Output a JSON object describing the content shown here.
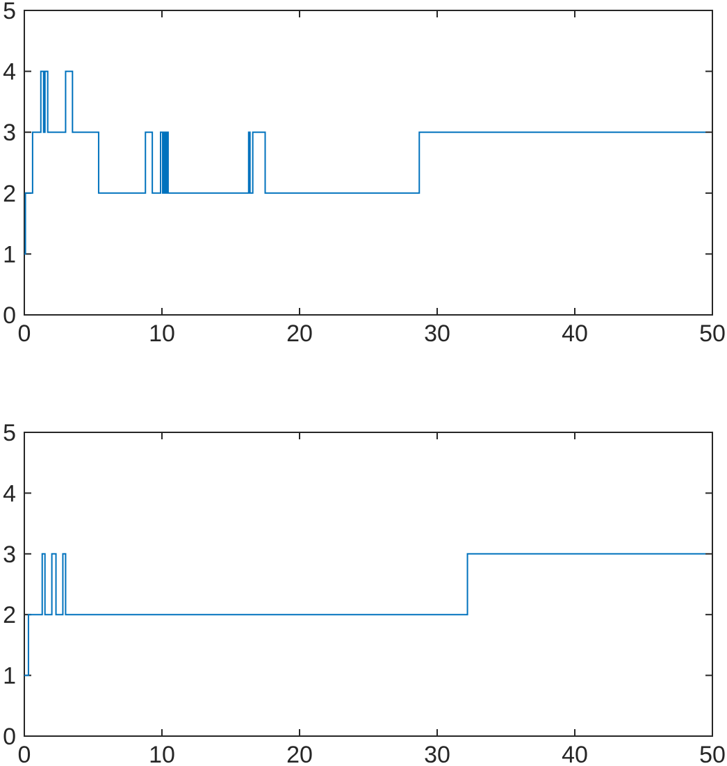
{
  "chart_data": [
    {
      "type": "line",
      "step": "post",
      "xlim": [
        0,
        50
      ],
      "ylim": [
        0,
        5
      ],
      "xticks": [
        0,
        10,
        20,
        30,
        40,
        50
      ],
      "yticks": [
        0,
        1,
        2,
        3,
        4,
        5
      ],
      "xtick_labels": [
        "0",
        "10",
        "20",
        "30",
        "40",
        "50"
      ],
      "ytick_labels": [
        "0",
        "1",
        "2",
        "3",
        "4",
        "5"
      ],
      "grid": false,
      "series": [
        {
          "color": "#0072BD",
          "x": [
            0.0,
            0.08,
            0.6,
            1.2,
            1.4,
            1.5,
            1.7,
            3.0,
            3.5,
            5.4,
            8.8,
            9.3,
            9.9,
            10.05,
            10.15,
            10.25,
            10.35,
            10.45,
            16.3,
            16.4,
            16.6,
            17.5,
            28.7,
            49.5
          ],
          "y": [
            1,
            2,
            3,
            4,
            3,
            4,
            3,
            4,
            3,
            2,
            3,
            2,
            3,
            2,
            3,
            2,
            3,
            2,
            3,
            2,
            3,
            2,
            3,
            3
          ]
        }
      ]
    },
    {
      "type": "line",
      "step": "post",
      "xlim": [
        0,
        50
      ],
      "ylim": [
        0,
        5
      ],
      "xticks": [
        0,
        10,
        20,
        30,
        40,
        50
      ],
      "yticks": [
        0,
        1,
        2,
        3,
        4,
        5
      ],
      "xtick_labels": [
        "0",
        "10",
        "20",
        "30",
        "40",
        "50"
      ],
      "ytick_labels": [
        "0",
        "1",
        "2",
        "3",
        "4",
        "5"
      ],
      "grid": false,
      "series": [
        {
          "color": "#0072BD",
          "x": [
            0.0,
            0.3,
            1.3,
            1.5,
            2.0,
            2.3,
            2.8,
            3.0,
            32.2,
            49.5
          ],
          "y": [
            1,
            2,
            3,
            2,
            3,
            2,
            3,
            2,
            3,
            3
          ]
        }
      ]
    }
  ]
}
